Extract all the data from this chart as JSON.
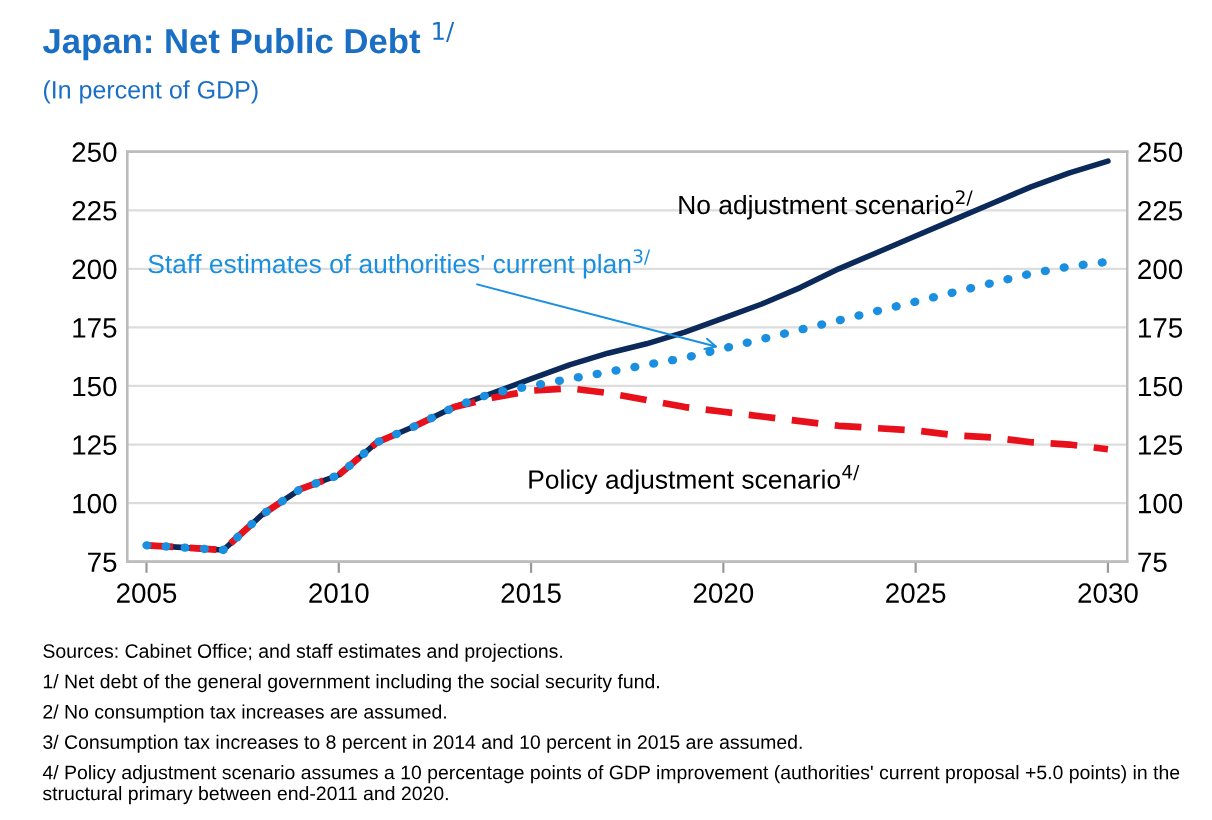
{
  "chart_data": {
    "type": "line",
    "title": "Japan: Net Public Debt $^{1/}$",
    "subtitle": "(In percent of GDP)",
    "x": [
      2005,
      2006,
      2007,
      2008,
      2009,
      2010,
      2011,
      2012,
      2013,
      2014,
      2015,
      2016,
      2017,
      2018,
      2019,
      2020,
      2021,
      2022,
      2023,
      2024,
      2025,
      2026,
      2027,
      2028,
      2029,
      2030
    ],
    "series": [
      {
        "name": "No adjustment scenario$^{2/}$",
        "color": "#0b2a5a",
        "line_style": "solid",
        "values": [
          82,
          81,
          80,
          95,
          106,
          112,
          126,
          133,
          141,
          147,
          153,
          159,
          164,
          168,
          173,
          179,
          185,
          192,
          200,
          207,
          214,
          221,
          228,
          235,
          241,
          246
        ]
      },
      {
        "name": "Policy adjustment scenario$^{4/}$",
        "color": "#e8101a",
        "line_style": "dashed",
        "values": [
          82,
          81,
          80,
          95,
          106,
          112,
          126,
          133,
          141,
          145,
          148,
          149,
          147,
          144,
          141,
          139,
          137,
          135,
          133,
          132,
          131,
          129,
          128,
          126,
          125,
          123
        ]
      },
      {
        "name": "Staff estimates of authorities' current plan$^{3/}$",
        "color": "#1a8fe0",
        "line_style": "dotted",
        "values": [
          82,
          81,
          80,
          95,
          106,
          112,
          126,
          133,
          141,
          147,
          150,
          153,
          156,
          159,
          162,
          166,
          170,
          174,
          178,
          182,
          186,
          190,
          194,
          198,
          201,
          203
        ]
      }
    ],
    "xlim": [
      2004.5,
      2030.5
    ],
    "xticks": [
      2005,
      2010,
      2015,
      2020,
      2025,
      2030
    ],
    "ylim": [
      75,
      250
    ],
    "yticks": [
      75,
      100,
      125,
      150,
      175,
      200,
      225,
      250
    ],
    "y2lim": [
      75,
      250
    ],
    "y2ticks": [
      75,
      100,
      125,
      150,
      175,
      200,
      225,
      250
    ],
    "grid": "y",
    "legend": false,
    "annotations": [
      "Sources: Cabinet Office; and staff estimates and projections.",
      "1/ Net debt of the general government including the social security fund.",
      "2/ No consumption tax increases are assumed.",
      "3/ Consumption tax increases to 8 percent in 2014 and 10 percent in 2015 are assumed.",
      "4/ Policy adjustment scenario assumes a 10 percentage points of GDP improvement (authorities' current proposal +5.0 points) in the structural primary between end-2011 and 2020."
    ]
  }
}
